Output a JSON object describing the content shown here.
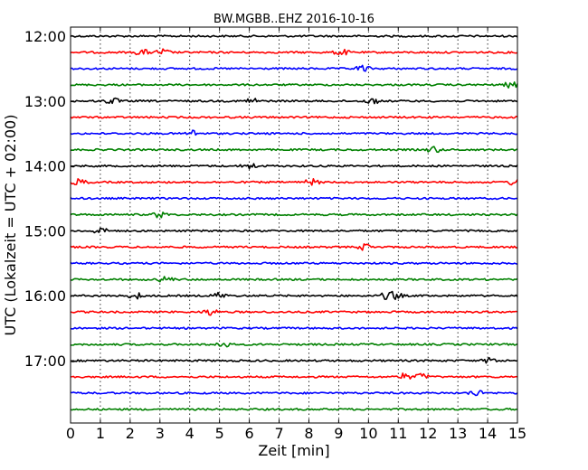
{
  "chart_data": {
    "type": "line",
    "title": "BW.MGBB..EHZ 2016-10-16",
    "xlabel": "Zeit  [min]",
    "ylabel": "UTC (Lokalzeit = UTC + 02:00)",
    "xlim": [
      0,
      15
    ],
    "x_ticks": [
      "0",
      "1",
      "2",
      "3",
      "4",
      "5",
      "6",
      "7",
      "8",
      "9",
      "10",
      "11",
      "12",
      "13",
      "14",
      "15"
    ],
    "y_tick_labels": [
      "12:00",
      "13:00",
      "14:00",
      "15:00",
      "16:00",
      "17:00"
    ],
    "grid": true,
    "series_colors": [
      "#000000",
      "#ff0000",
      "#0000ff",
      "#008000"
    ],
    "series": [
      {
        "start": "12:00",
        "color": "#000000"
      },
      {
        "start": "12:15",
        "color": "#ff0000",
        "events": [
          2.4,
          3.1,
          9.1
        ]
      },
      {
        "start": "12:30",
        "color": "#0000ff",
        "events": [
          9.8
        ]
      },
      {
        "start": "12:45",
        "color": "#008000",
        "events": [
          14.8
        ]
      },
      {
        "start": "13:00",
        "color": "#000000",
        "events": [
          1.4,
          6.1,
          10.1
        ]
      },
      {
        "start": "13:15",
        "color": "#ff0000"
      },
      {
        "start": "13:30",
        "color": "#0000ff",
        "events": [
          4.1
        ]
      },
      {
        "start": "13:45",
        "color": "#008000",
        "events": [
          12.2
        ]
      },
      {
        "start": "14:00",
        "color": "#000000",
        "events": [
          6.0
        ]
      },
      {
        "start": "14:15",
        "color": "#ff0000",
        "events": [
          0.3,
          8.1,
          14.9
        ]
      },
      {
        "start": "14:30",
        "color": "#0000ff"
      },
      {
        "start": "14:45",
        "color": "#008000",
        "events": [
          3.0
        ]
      },
      {
        "start": "15:00",
        "color": "#000000",
        "events": [
          1.0
        ]
      },
      {
        "start": "15:15",
        "color": "#ff0000",
        "events": [
          9.9
        ]
      },
      {
        "start": "15:30",
        "color": "#0000ff"
      },
      {
        "start": "15:45",
        "color": "#008000",
        "events": [
          3.2
        ]
      },
      {
        "start": "16:00",
        "color": "#000000",
        "events": [
          2.2,
          5.0,
          10.6,
          10.9
        ]
      },
      {
        "start": "16:15",
        "color": "#ff0000",
        "events": [
          4.7
        ]
      },
      {
        "start": "16:30",
        "color": "#0000ff"
      },
      {
        "start": "16:45",
        "color": "#008000",
        "events": [
          5.1
        ]
      },
      {
        "start": "17:00",
        "color": "#000000",
        "events": [
          14.1
        ]
      },
      {
        "start": "17:15",
        "color": "#ff0000",
        "events": [
          11.2,
          11.8
        ]
      },
      {
        "start": "17:30",
        "color": "#0000ff",
        "events": [
          13.6
        ]
      },
      {
        "start": "17:45",
        "color": "#008000"
      }
    ]
  }
}
